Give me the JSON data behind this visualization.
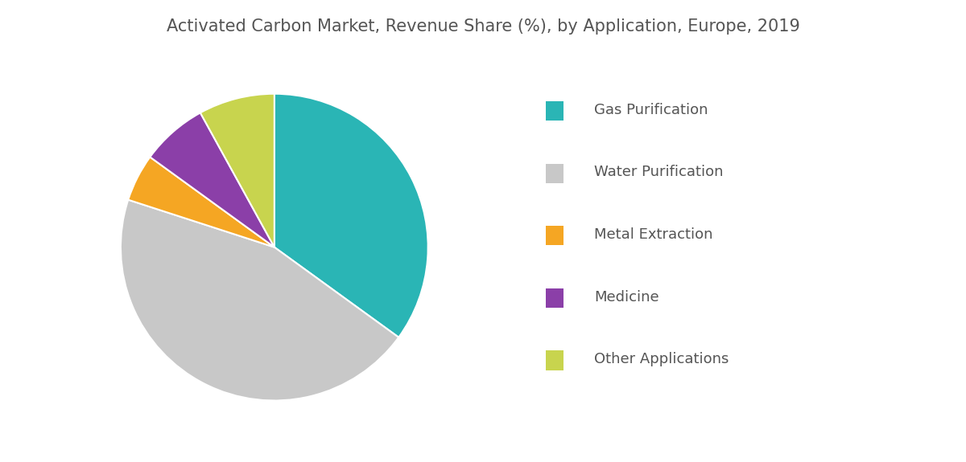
{
  "title": "Activated Carbon Market, Revenue Share (%), by Application, Europe, 2019",
  "labels": [
    "Gas Purification",
    "Water Purification",
    "Metal Extraction",
    "Medicine",
    "Other Applications"
  ],
  "values": [
    35,
    45,
    5,
    7,
    8
  ],
  "colors": [
    "#2ab5b5",
    "#c8c8c8",
    "#f5a623",
    "#8b3fa8",
    "#c8d44e"
  ],
  "title_color": "#555555",
  "title_fontsize": 15,
  "legend_fontsize": 13,
  "background_color": "#ffffff",
  "startangle": 90
}
